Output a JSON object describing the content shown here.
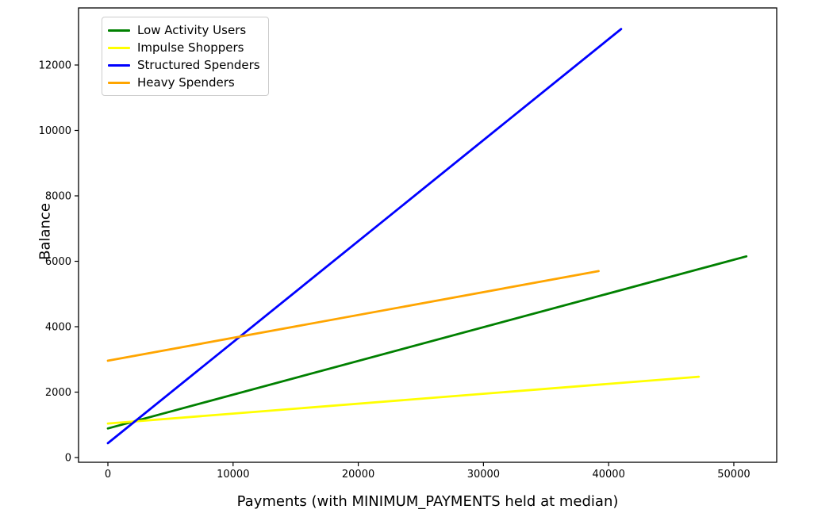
{
  "chart_data": {
    "type": "line",
    "title": "",
    "xlabel": "Payments (with MINIMUM_PAYMENTS held at median)",
    "ylabel": "Balance",
    "xlim": [
      -2345,
      53425
    ],
    "ylim": [
      -145,
      13745
    ],
    "x_ticks": [
      0,
      10000,
      20000,
      30000,
      40000,
      50000
    ],
    "y_ticks": [
      0,
      2000,
      4000,
      6000,
      8000,
      10000,
      12000
    ],
    "grid": false,
    "legend_position": "upper left",
    "colors": {
      "background": "#ffffff",
      "spine": "#000000",
      "tick": "#000000",
      "text": "#000000",
      "legend_border": "#cccccc"
    },
    "series": [
      {
        "name": "Low Activity Users",
        "color": "#008000",
        "points": [
          [
            0,
            890
          ],
          [
            51000,
            6150
          ]
        ]
      },
      {
        "name": "Impulse Shoppers",
        "color": "#ffff00",
        "points": [
          [
            0,
            1040
          ],
          [
            47200,
            2470
          ]
        ]
      },
      {
        "name": "Structured Spenders",
        "color": "#0000ff",
        "points": [
          [
            0,
            440
          ],
          [
            41000,
            13100
          ]
        ]
      },
      {
        "name": "Heavy Spenders",
        "color": "#ffa500",
        "points": [
          [
            0,
            2960
          ],
          [
            39200,
            5700
          ]
        ]
      }
    ]
  }
}
